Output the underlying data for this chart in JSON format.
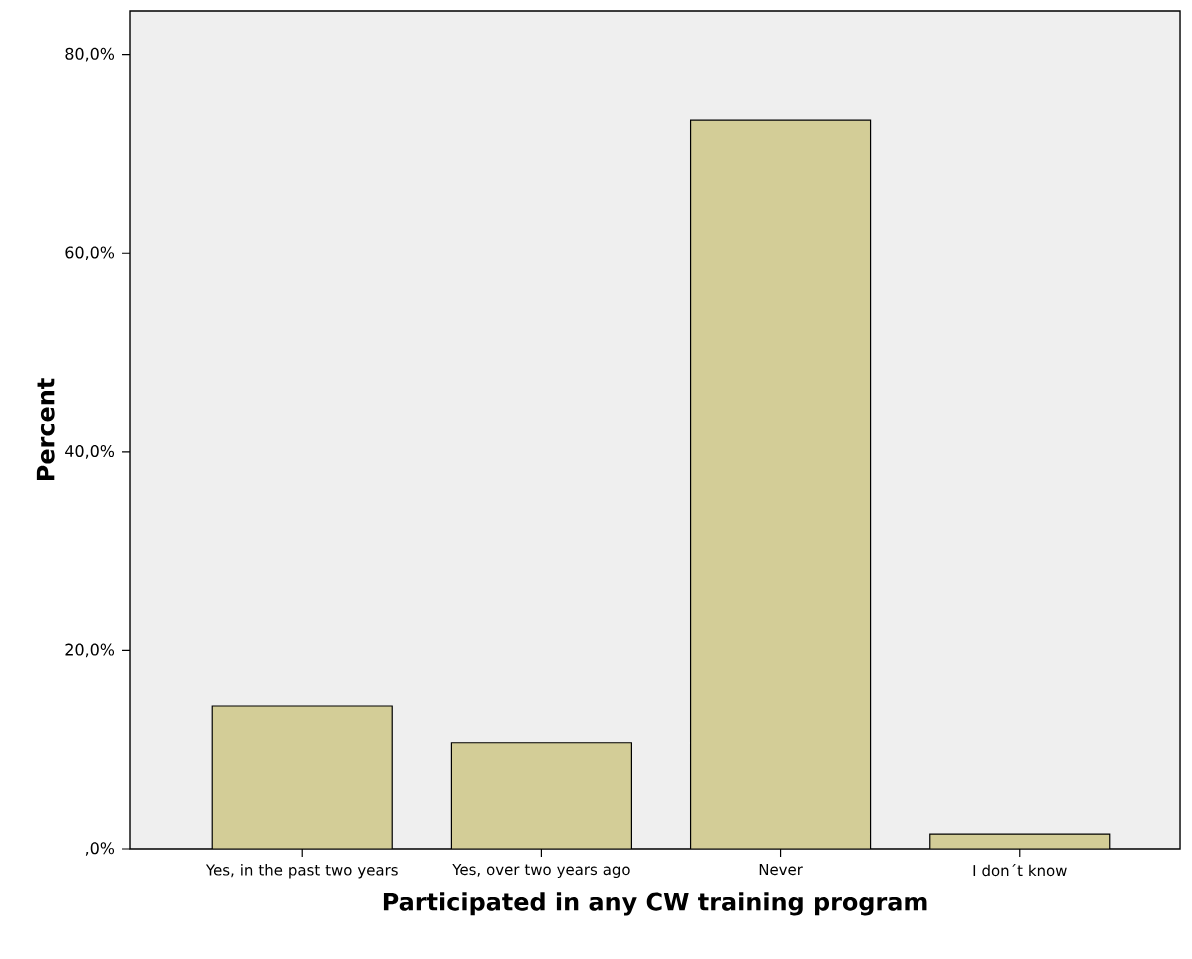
{
  "chart_data": {
    "type": "bar",
    "xlabel": "Participated in any CW training program",
    "ylabel": "Percent",
    "categories": [
      "Yes, in the past two years",
      "Yes, over two years ago",
      "Never",
      "I don´t know"
    ],
    "values": [
      14.4,
      10.7,
      73.4,
      1.5
    ],
    "color": "#d3cd97",
    "ylim": [
      0,
      84.4
    ],
    "yticks": [
      {
        "value": 0,
        "label": ",0%"
      },
      {
        "value": 20,
        "label": "20,0%"
      },
      {
        "value": 40,
        "label": "40,0%"
      },
      {
        "value": 60,
        "label": "60,0%"
      },
      {
        "value": 80,
        "label": "80,0%"
      }
    ]
  }
}
